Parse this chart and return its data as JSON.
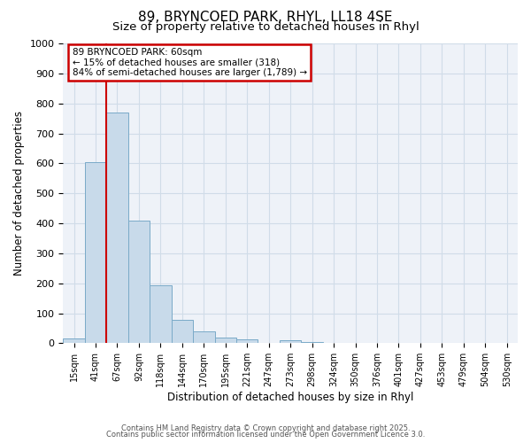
{
  "title1": "89, BRYNCOED PARK, RHYL, LL18 4SE",
  "title2": "Size of property relative to detached houses in Rhyl",
  "xlabel": "Distribution of detached houses by size in Rhyl",
  "ylabel": "Number of detached properties",
  "bar_labels": [
    "15sqm",
    "41sqm",
    "67sqm",
    "92sqm",
    "118sqm",
    "144sqm",
    "170sqm",
    "195sqm",
    "221sqm",
    "247sqm",
    "273sqm",
    "298sqm",
    "324sqm",
    "350sqm",
    "376sqm",
    "401sqm",
    "427sqm",
    "453sqm",
    "479sqm",
    "504sqm",
    "530sqm"
  ],
  "bar_values": [
    15,
    605,
    770,
    410,
    193,
    78,
    38,
    18,
    13,
    0,
    10,
    5,
    0,
    0,
    0,
    0,
    0,
    0,
    0,
    0,
    0
  ],
  "bar_color": "#c8daea",
  "bar_edge_color": "#7aaac8",
  "red_line_color": "#cc0000",
  "annotation_line1": "89 BRYNCOED PARK: 60sqm",
  "annotation_line2": "← 15% of detached houses are smaller (318)",
  "annotation_line3": "84% of semi-detached houses are larger (1,789) →",
  "annotation_box_facecolor": "#ffffff",
  "annotation_box_edgecolor": "#cc0000",
  "ylim": [
    0,
    1000
  ],
  "yticks": [
    0,
    100,
    200,
    300,
    400,
    500,
    600,
    700,
    800,
    900,
    1000
  ],
  "grid_color": "#d0dce8",
  "plot_bg_color": "#eef2f8",
  "fig_bg_color": "#ffffff",
  "footer1": "Contains HM Land Registry data © Crown copyright and database right 2025.",
  "footer2": "Contains public sector information licensed under the Open Government Licence 3.0."
}
